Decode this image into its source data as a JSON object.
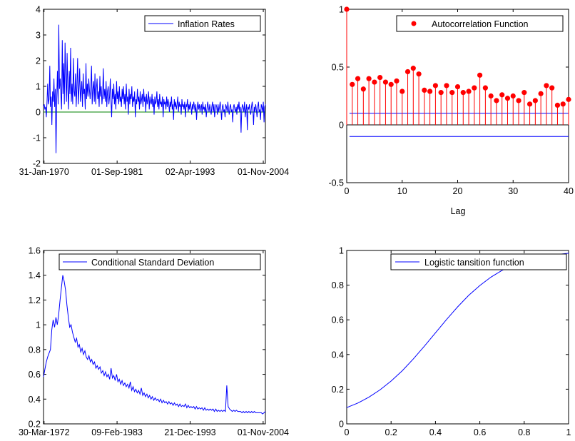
{
  "colors": {
    "line": "#0000ff",
    "zero_line": "#008000",
    "acf": "#ff0000",
    "axis": "#000000"
  },
  "chart_data": [
    {
      "type": "line",
      "legend": "Inflation Rates",
      "legend_position": "top-right",
      "ylim": [
        -2,
        4
      ],
      "yticks": [
        "-2",
        "-1",
        "0",
        "1",
        "2",
        "3",
        "4"
      ],
      "xticks": [
        "31-Jan-1970",
        "01-Sep-1981",
        "02-Apr-1993",
        "01-Nov-2004"
      ],
      "x_range": [
        "1970-01",
        "2005-03"
      ],
      "reference_line": 0,
      "series": [
        {
          "values": [
            0.2,
            0.3,
            0.1,
            0.2,
            -0.2,
            0.4,
            1.1,
            0.3,
            0.5,
            1.8,
            0.2,
            0.6,
            -0.5,
            0.8,
            0.4,
            1.3,
            0.2,
            0.9,
            -1.6,
            0.5,
            1.6,
            0.3,
            3.4,
            0.9,
            1.3,
            0.6,
            0.1,
            2.8,
            0.7,
            1.9,
            0.3,
            2.7,
            1.2,
            0.4,
            2.3,
            0.9,
            0.1,
            1.6,
            0.7,
            2.5,
            0.4,
            1.1,
            0.3,
            2.1,
            0.8,
            0.6,
            1.5,
            0.2,
            1.0,
            2.1,
            0.3,
            0.9,
            1.7,
            0.4,
            0.8,
            1.2,
            0.2,
            1.5,
            0.7,
            0.9,
            0.1,
            1.9,
            0.5,
            1.1,
            0.6,
            1.3,
            0.9,
            0.5,
            1.0,
            1.8,
            0.3,
            0.9,
            1.2,
            0.4,
            1.5,
            0.3,
            0.9,
            1.3,
            0.5,
            0.8,
            0.2,
            1.4,
            0.6,
            1.0,
            0.3,
            0.7,
            1.7,
            0.5,
            0.9,
            0.4,
            1.2,
            0.2,
            0.8,
            1.0,
            0.3,
            0.6,
            1.3,
            0.4,
            -0.2,
            0.9,
            0.5,
            1.1,
            0.3,
            0.7,
            0.1,
            1.2,
            0.5,
            0.8,
            0.3,
            1.0,
            0.4,
            0.6,
            0.2,
            0.9,
            0.5,
            1.0,
            0.3,
            0.7,
            0.1,
            1.1,
            0.4,
            0.6,
            -0.1,
            0.9,
            0.3,
            0.7,
            0.5,
            1.0,
            0.2,
            0.6,
            0.4,
            0.8,
            -0.2,
            0.5,
            0.3,
            0.9,
            0.4,
            0.6,
            0.1,
            0.8,
            0.3,
            0.5,
            0.7,
            0.2,
            0.9,
            0.4,
            0.6,
            0.0,
            0.7,
            0.3,
            0.5,
            0.8,
            0.1,
            0.6,
            0.4,
            0.3,
            0.7,
            0.2,
            0.5,
            -0.1,
            0.6,
            0.3,
            0.4,
            0.8,
            0.2,
            0.5,
            0.1,
            0.7,
            0.3,
            0.4,
            0.2,
            0.6,
            -0.2,
            0.5,
            0.3,
            0.4,
            0.1,
            0.6,
            0.2,
            0.5,
            0.3,
            0.0,
            0.4,
            0.2,
            0.6,
            0.1,
            0.3,
            -0.3,
            0.5,
            0.2,
            0.4,
            0.1,
            0.3,
            0.6,
            0.0,
            0.4,
            0.2,
            0.3,
            -0.1,
            0.5,
            0.2,
            0.3,
            0.1,
            0.4,
            -0.2,
            0.3,
            0.2,
            0.5,
            0.0,
            0.3,
            0.1,
            0.4,
            0.2,
            -0.1,
            0.3,
            0.1,
            0.4,
            0.2,
            0.0,
            0.3,
            -0.3,
            0.2,
            0.4,
            0.1,
            0.3,
            0.0,
            0.2,
            0.3,
            -0.1,
            0.4,
            0.1,
            0.2,
            0.0,
            0.3,
            -0.2,
            0.1,
            0.4,
            0.2,
            0.0,
            0.3,
            0.1,
            -0.1,
            0.2,
            0.4,
            0.0,
            0.3,
            -0.2,
            0.1,
            0.3,
            0.2,
            -0.1,
            0.3,
            0.0,
            0.2,
            0.4,
            0.1,
            -0.3,
            0.2,
            0.3,
            0.0,
            0.1,
            -0.2,
            0.3,
            0.2,
            0.0,
            0.4,
            0.1,
            -0.1,
            0.2,
            0.3,
            0.0,
            0.1,
            -0.4,
            0.2,
            0.3,
            0.1,
            0.0,
            0.2,
            -0.1,
            0.3,
            0.1,
            0.4,
            0.0,
            0.2,
            -0.8,
            0.1,
            0.3,
            0.2,
            0.0,
            0.4,
            -0.2,
            0.1,
            0.3,
            -0.7,
            0.2,
            0.1,
            0.3,
            0.0,
            -0.1,
            0.2,
            0.4,
            0.1,
            -0.5,
            0.2,
            0.0,
            0.3,
            0.1,
            -0.2,
            0.2,
            0.4,
            0.0,
            0.1,
            -0.3,
            0.3,
            0.2,
            0.0,
            0.4,
            -0.4,
            0.2,
            0.3
          ]
        }
      ]
    },
    {
      "type": "stem",
      "legend": "Autocorrelation Function",
      "legend_position": "top-right",
      "xlabel": "Lag",
      "xlim": [
        0,
        40
      ],
      "ylim": [
        -0.5,
        1
      ],
      "xticks": [
        "0",
        "10",
        "20",
        "30",
        "40"
      ],
      "yticks": [
        "-0.5",
        "0",
        "0.5",
        "1"
      ],
      "confidence_bounds": [
        0.1,
        -0.1
      ],
      "lags": [
        0,
        1,
        2,
        3,
        4,
        5,
        6,
        7,
        8,
        9,
        10,
        11,
        12,
        13,
        14,
        15,
        16,
        17,
        18,
        19,
        20,
        21,
        22,
        23,
        24,
        25,
        26,
        27,
        28,
        29,
        30,
        31,
        32,
        33,
        34,
        35,
        36,
        37,
        38,
        39,
        40
      ],
      "values": [
        1.0,
        0.35,
        0.4,
        0.31,
        0.4,
        0.37,
        0.41,
        0.37,
        0.35,
        0.38,
        0.29,
        0.46,
        0.49,
        0.44,
        0.3,
        0.29,
        0.34,
        0.28,
        0.34,
        0.28,
        0.33,
        0.28,
        0.29,
        0.32,
        0.43,
        0.32,
        0.25,
        0.21,
        0.26,
        0.23,
        0.25,
        0.21,
        0.28,
        0.18,
        0.21,
        0.27,
        0.34,
        0.32,
        0.17,
        0.18,
        0.22
      ]
    },
    {
      "type": "line",
      "legend": "Conditional Standard Deviation",
      "legend_position": "top-right",
      "ylim": [
        0.2,
        1.6
      ],
      "yticks": [
        "0.2",
        "0.4",
        "0.6",
        "0.8",
        "1",
        "1.2",
        "1.4",
        "1.6"
      ],
      "xticks": [
        "30-Mar-1972",
        "09-Feb-1983",
        "21-Dec-1993",
        "01-Nov-2004"
      ],
      "x_range": [
        "1972-03",
        "2005-03"
      ],
      "series": [
        {
          "values": [
            0.58,
            0.64,
            0.7,
            0.74,
            0.77,
            0.8,
            0.96,
            1.04,
            0.98,
            1.06,
            1.0,
            1.08,
            1.2,
            1.3,
            1.4,
            1.35,
            1.28,
            1.16,
            1.06,
            0.98,
            1.0,
            0.94,
            0.9,
            0.86,
            0.89,
            0.82,
            0.84,
            0.78,
            0.81,
            0.76,
            0.79,
            0.74,
            0.72,
            0.75,
            0.7,
            0.72,
            0.68,
            0.7,
            0.65,
            0.67,
            0.64,
            0.66,
            0.61,
            0.63,
            0.59,
            0.62,
            0.58,
            0.6,
            0.56,
            0.65,
            0.57,
            0.59,
            0.55,
            0.6,
            0.54,
            0.56,
            0.52,
            0.55,
            0.51,
            0.53,
            0.5,
            0.52,
            0.49,
            0.54,
            0.47,
            0.5,
            0.46,
            0.48,
            0.45,
            0.47,
            0.44,
            0.49,
            0.43,
            0.45,
            0.42,
            0.44,
            0.41,
            0.43,
            0.4,
            0.42,
            0.39,
            0.41,
            0.39,
            0.4,
            0.38,
            0.4,
            0.37,
            0.39,
            0.37,
            0.38,
            0.36,
            0.38,
            0.36,
            0.37,
            0.35,
            0.37,
            0.35,
            0.36,
            0.34,
            0.36,
            0.34,
            0.35,
            0.34,
            0.36,
            0.33,
            0.35,
            0.33,
            0.34,
            0.33,
            0.34,
            0.32,
            0.34,
            0.32,
            0.33,
            0.32,
            0.33,
            0.31,
            0.33,
            0.31,
            0.32,
            0.31,
            0.32,
            0.31,
            0.32,
            0.3,
            0.32,
            0.3,
            0.31,
            0.3,
            0.31,
            0.3,
            0.31,
            0.3,
            0.51,
            0.34,
            0.32,
            0.31,
            0.3,
            0.31,
            0.3,
            0.31,
            0.3,
            0.3,
            0.3,
            0.29,
            0.3,
            0.29,
            0.3,
            0.29,
            0.3,
            0.29,
            0.3,
            0.29,
            0.3,
            0.29,
            0.29,
            0.29,
            0.29,
            0.29,
            0.28,
            0.29,
            0.3
          ]
        }
      ]
    },
    {
      "type": "line",
      "legend": "Logistic tansition function",
      "legend_position": "top-right",
      "xlim": [
        0,
        1
      ],
      "ylim": [
        0,
        1
      ],
      "xticks": [
        "0",
        "0.2",
        "0.4",
        "0.6",
        "0.8",
        "1"
      ],
      "yticks": [
        "0",
        "0.2",
        "0.4",
        "0.6",
        "0.8",
        "1"
      ],
      "series": [
        {
          "x": [
            0,
            0.05,
            0.1,
            0.15,
            0.2,
            0.25,
            0.3,
            0.35,
            0.4,
            0.45,
            0.5,
            0.55,
            0.6,
            0.65,
            0.7,
            0.75,
            0.8,
            0.85,
            0.9,
            0.95,
            1.0
          ],
          "y": [
            0.094,
            0.12,
            0.154,
            0.196,
            0.247,
            0.306,
            0.374,
            0.448,
            0.525,
            0.602,
            0.675,
            0.741,
            0.798,
            0.846,
            0.885,
            0.915,
            0.938,
            0.955,
            0.968,
            0.977,
            0.984
          ]
        }
      ]
    }
  ]
}
